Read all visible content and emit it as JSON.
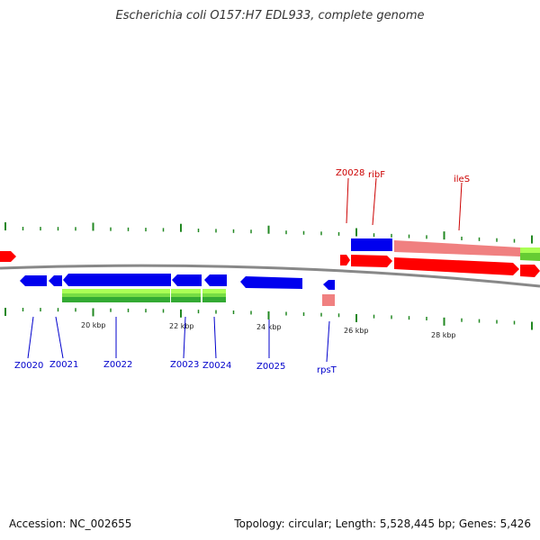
{
  "title": "Escherichia coli O157:H7 EDL933, complete genome",
  "footer": {
    "accession": "Accession: NC_002655",
    "summary": "Topology: circular; Length: 5,528,445 bp; Genes: 5,426"
  },
  "colors": {
    "forward_gene": "#ff0000",
    "forward_gene_light": "#f08080",
    "reverse_gene": "#0000ee",
    "green_bar": "#33aa33",
    "green_bar_light": "#aaff55",
    "backbone": "#888888",
    "tick": "#228822",
    "forward_label": "#cc0000",
    "reverse_label": "#0000cc"
  },
  "scale_labels": [
    "20 kbp",
    "22 kbp",
    "24 kbp",
    "26 kbp",
    "28 kbp"
  ],
  "genes_forward": [
    {
      "name": "Z0028"
    },
    {
      "name": "ribF"
    },
    {
      "name": "ileS"
    }
  ],
  "genes_reverse": [
    {
      "name": "Z0020"
    },
    {
      "name": "Z0021"
    },
    {
      "name": "Z0022"
    },
    {
      "name": "Z0023"
    },
    {
      "name": "Z0024"
    },
    {
      "name": "Z0025"
    },
    {
      "name": "rpsT"
    }
  ]
}
